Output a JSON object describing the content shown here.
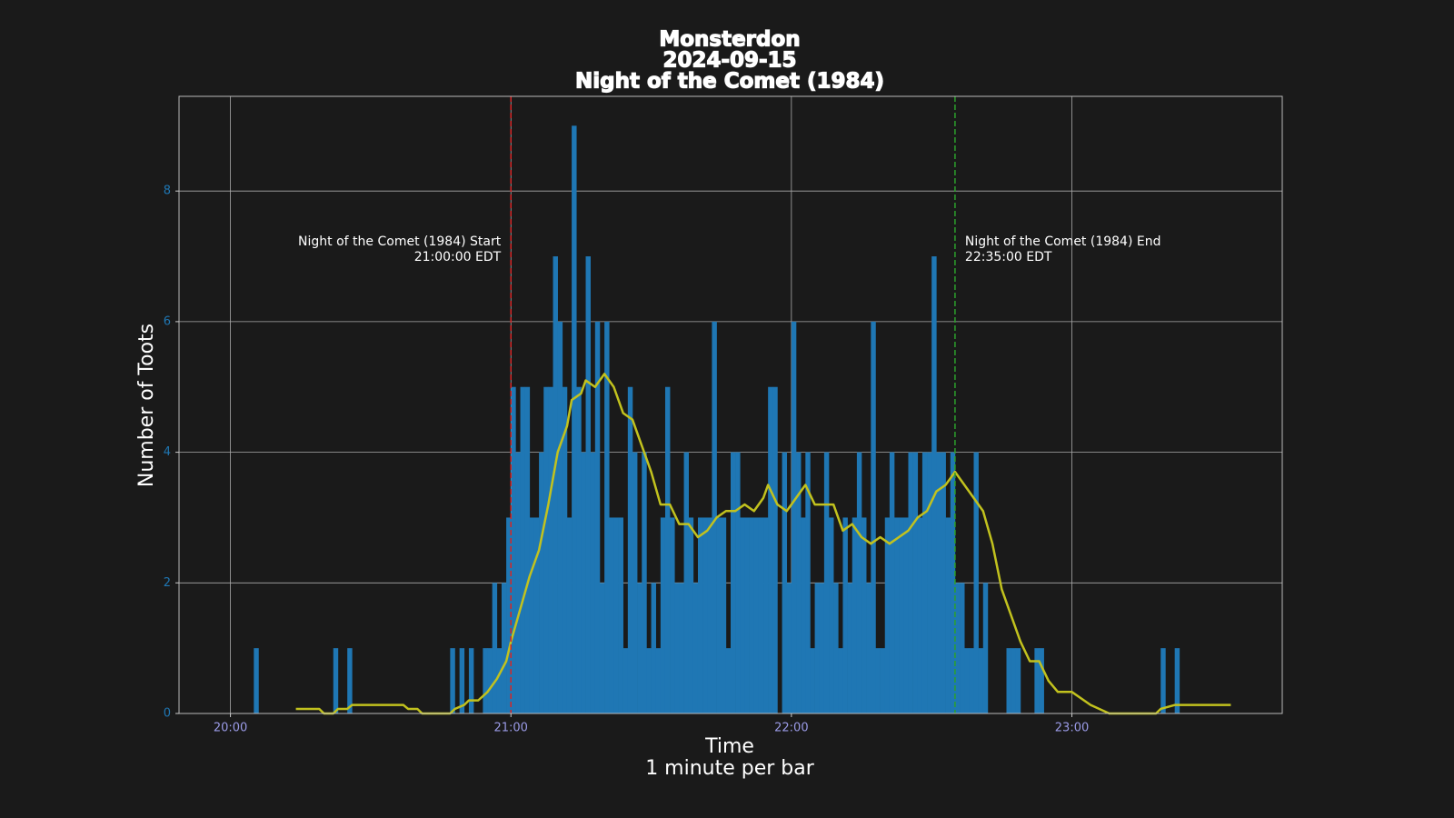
{
  "chart_data": {
    "type": "bar",
    "title": [
      "Monsterdon",
      "2024-09-15",
      "Night of the Comet (1984)"
    ],
    "xlabel": [
      "Time",
      "1 minute per bar"
    ],
    "ylabel": "Number of Toots",
    "xlim": [
      "19:49",
      "23:45"
    ],
    "ylim": [
      0,
      9.45
    ],
    "xticks": [
      "20:00",
      "21:00",
      "22:00",
      "23:00"
    ],
    "yticks": [
      0,
      2,
      4,
      6,
      8
    ],
    "grid": true,
    "series": [
      {
        "type": "bar",
        "color": "#1f77b4",
        "x": [
          "20:05",
          "20:22",
          "20:25",
          "20:47",
          "20:49",
          "20:51",
          "20:54",
          "20:55",
          "20:56",
          "20:57",
          "20:58",
          "20:59",
          "21:00",
          "21:01",
          "21:02",
          "21:03",
          "21:04",
          "21:05",
          "21:06",
          "21:07",
          "21:08",
          "21:09",
          "21:10",
          "21:11",
          "21:12",
          "21:13",
          "21:14",
          "21:15",
          "21:16",
          "21:17",
          "21:18",
          "21:19",
          "21:20",
          "21:21",
          "21:22",
          "21:23",
          "21:24",
          "21:25",
          "21:26",
          "21:27",
          "21:28",
          "21:29",
          "21:30",
          "21:31",
          "21:32",
          "21:33",
          "21:34",
          "21:35",
          "21:36",
          "21:37",
          "21:38",
          "21:39",
          "21:40",
          "21:41",
          "21:42",
          "21:43",
          "21:44",
          "21:45",
          "21:46",
          "21:47",
          "21:48",
          "21:49",
          "21:50",
          "21:51",
          "21:52",
          "21:53",
          "21:54",
          "21:55",
          "21:56",
          "21:57",
          "21:58",
          "21:59",
          "22:00",
          "22:01",
          "22:02",
          "22:03",
          "22:04",
          "22:05",
          "22:06",
          "22:07",
          "22:08",
          "22:09",
          "22:10",
          "22:11",
          "22:12",
          "22:13",
          "22:14",
          "22:15",
          "22:16",
          "22:17",
          "22:18",
          "22:19",
          "22:20",
          "22:21",
          "22:22",
          "22:23",
          "22:24",
          "22:25",
          "22:26",
          "22:27",
          "22:28",
          "22:29",
          "22:30",
          "22:31",
          "22:32",
          "22:33",
          "22:34",
          "22:35",
          "22:36",
          "22:37",
          "22:38",
          "22:39",
          "22:40",
          "22:41",
          "22:46",
          "22:47",
          "22:48",
          "22:52",
          "22:53",
          "23:19",
          "23:22"
        ],
        "values": [
          1,
          1,
          1,
          1,
          1,
          1,
          1,
          1,
          2,
          1,
          2,
          3,
          5,
          4,
          5,
          5,
          3,
          3,
          4,
          5,
          5,
          7,
          6,
          5,
          3,
          9,
          5,
          4,
          7,
          4,
          6,
          2,
          6,
          3,
          3,
          3,
          1,
          5,
          4,
          2,
          4,
          1,
          2,
          1,
          3,
          5,
          3,
          2,
          2,
          4,
          3,
          2,
          3,
          3,
          3,
          6,
          3,
          3,
          1,
          4,
          4,
          3,
          3,
          3,
          3,
          3,
          3,
          5,
          5,
          0,
          4,
          2,
          6,
          4,
          3,
          4,
          1,
          2,
          2,
          4,
          3,
          2,
          1,
          3,
          2,
          3,
          4,
          3,
          2,
          6,
          1,
          1,
          3,
          4,
          3,
          3,
          3,
          4,
          4,
          3,
          4,
          4,
          7,
          4,
          4,
          3,
          4,
          2,
          2,
          1,
          1,
          4,
          1,
          2,
          1,
          1,
          1,
          1,
          1,
          1,
          1
        ]
      },
      {
        "type": "line",
        "color": "#c2c21e",
        "x": [
          "20:14",
          "20:19",
          "20:20",
          "20:22",
          "20:23",
          "20:25",
          "20:26",
          "20:37",
          "20:38",
          "20:40",
          "20:41",
          "20:47",
          "20:48",
          "20:50",
          "20:51",
          "20:53",
          "20:55",
          "20:57",
          "20:59",
          "21:00",
          "21:02",
          "21:04",
          "21:06",
          "21:08",
          "21:10",
          "21:12",
          "21:13",
          "21:15",
          "21:16",
          "21:18",
          "21:20",
          "21:22",
          "21:24",
          "21:26",
          "21:28",
          "21:30",
          "21:32",
          "21:34",
          "21:36",
          "21:38",
          "21:40",
          "21:42",
          "21:44",
          "21:46",
          "21:48",
          "21:50",
          "21:52",
          "21:54",
          "21:55",
          "21:57",
          "21:59",
          "22:01",
          "22:03",
          "22:05",
          "22:07",
          "22:09",
          "22:11",
          "22:13",
          "22:15",
          "22:17",
          "22:19",
          "22:21",
          "22:23",
          "22:25",
          "22:27",
          "22:29",
          "22:31",
          "22:33",
          "22:35",
          "22:37",
          "22:39",
          "22:41",
          "22:43",
          "22:45",
          "22:47",
          "22:49",
          "22:51",
          "22:53",
          "22:55",
          "22:57",
          "23:00",
          "23:04",
          "23:08",
          "23:18",
          "23:19",
          "23:22",
          "23:34"
        ],
        "values": [
          0.07,
          0.07,
          0,
          0,
          0.07,
          0.07,
          0.13,
          0.13,
          0.07,
          0.07,
          0,
          0,
          0.07,
          0.13,
          0.2,
          0.2,
          0.33,
          0.53,
          0.8,
          1.1,
          1.6,
          2.1,
          2.5,
          3.2,
          4.0,
          4.4,
          4.8,
          4.9,
          5.1,
          5.0,
          5.2,
          5.0,
          4.6,
          4.5,
          4.1,
          3.7,
          3.2,
          3.2,
          2.9,
          2.9,
          2.7,
          2.8,
          3.0,
          3.1,
          3.1,
          3.2,
          3.1,
          3.3,
          3.5,
          3.2,
          3.1,
          3.3,
          3.5,
          3.2,
          3.2,
          3.2,
          2.8,
          2.9,
          2.7,
          2.6,
          2.7,
          2.6,
          2.7,
          2.8,
          3.0,
          3.1,
          3.4,
          3.5,
          3.7,
          3.5,
          3.3,
          3.1,
          2.6,
          1.9,
          1.5,
          1.1,
          0.8,
          0.8,
          0.5,
          0.33,
          0.33,
          0.13,
          0,
          0,
          0.07,
          0.13,
          0.13
        ]
      }
    ],
    "annotations": [
      {
        "x": "21:00",
        "color": "#d62728",
        "label": [
          "Night of the Comet (1984) Start",
          "21:00:00 EDT"
        ]
      },
      {
        "x": "22:35",
        "color": "#2ca02c",
        "label": [
          "Night of the Comet (1984) End",
          "22:35:00 EDT"
        ]
      }
    ]
  }
}
